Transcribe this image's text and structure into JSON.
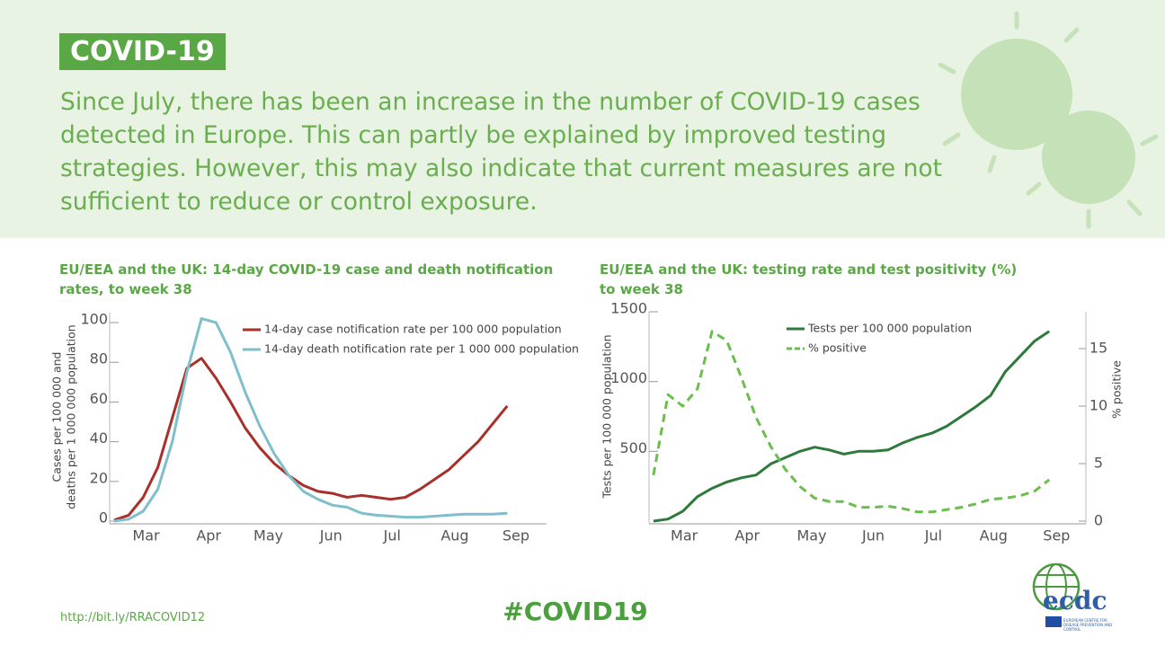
{
  "header": {
    "badge": "COVID-19",
    "text": "Since July, there has been an increase in the number of COVID-19 cases detected in Europe. This can partly be explained by improved testing strategies. However, this may also indicate that current measures are not sufficient to reduce or control exposure."
  },
  "chart_data": [
    {
      "type": "line",
      "title": "EU/EEA and the UK: 14-day COVID-19 case and death notification rates, to week 38",
      "ylabel": [
        "Cases per 100 000 and",
        "deaths per 1 000 000 population"
      ],
      "x": [
        9,
        10,
        11,
        12,
        13,
        14,
        15,
        16,
        17,
        18,
        19,
        20,
        21,
        22,
        23,
        24,
        25,
        26,
        27,
        28,
        29,
        30,
        31,
        32,
        33,
        34,
        35,
        36
      ],
      "xlim": [
        8.7,
        38.7
      ],
      "xticks": [
        {
          "value": 11.2,
          "label": "Mar"
        },
        {
          "value": 15.5,
          "label": "Apr"
        },
        {
          "value": 19.6,
          "label": "May"
        },
        {
          "value": 23.9,
          "label": "Jun"
        },
        {
          "value": 28.1,
          "label": "Jul"
        },
        {
          "value": 32.4,
          "label": "Aug"
        },
        {
          "value": 36.6,
          "label": "Sep"
        }
      ],
      "ylim": [
        0,
        105
      ],
      "yticks": [
        0,
        20,
        40,
        60,
        80,
        100
      ],
      "series": [
        {
          "name": "14-day case notification rate per 100 000 population",
          "color": "#a8302a",
          "values": [
            0.5,
            3,
            12,
            27,
            52,
            77,
            82,
            72,
            60,
            47,
            37,
            29,
            23,
            18,
            15,
            14,
            12,
            13,
            12,
            11,
            12,
            16,
            21,
            26,
            33,
            40,
            49,
            58
          ]
        },
        {
          "name": "14-day death notification rate per 1 000 000 population",
          "color": "#7fbfcb",
          "values": [
            0,
            1,
            5,
            16,
            40,
            75,
            102,
            100,
            85,
            65,
            48,
            34,
            23,
            15,
            11,
            8,
            7,
            4,
            3,
            2.5,
            2,
            2,
            2.5,
            3,
            3.5,
            3.5,
            3.5,
            4
          ]
        }
      ]
    },
    {
      "type": "line",
      "title": "EU/EEA and the UK: testing rate and test positivity (%) to week 38",
      "ylabel": [
        "Tests per 100 000 population"
      ],
      "y2label": "% positive",
      "x": [
        9,
        10,
        11,
        12,
        13,
        14,
        15,
        16,
        17,
        18,
        19,
        20,
        21,
        22,
        23,
        24,
        25,
        26,
        27,
        28,
        29,
        30,
        31,
        32,
        33,
        34,
        35,
        36
      ],
      "xlim": [
        8.7,
        38.5
      ],
      "xticks": [
        {
          "value": 11.1,
          "label": "Mar"
        },
        {
          "value": 15.4,
          "label": "Apr"
        },
        {
          "value": 19.8,
          "label": "May"
        },
        {
          "value": 24,
          "label": "Jun"
        },
        {
          "value": 28.1,
          "label": "Jul"
        },
        {
          "value": 32.2,
          "label": "Aug"
        },
        {
          "value": 36.5,
          "label": "Sep"
        }
      ],
      "ylim": [
        0,
        1500
      ],
      "yticks": [
        500,
        1000,
        1500
      ],
      "y2lim": [
        0,
        18.2
      ],
      "y2ticks": [
        0,
        5,
        10,
        15
      ],
      "series": [
        {
          "name": "Tests per 100 000 population",
          "color": "#2e7a3c",
          "linestyle": "solid",
          "values": [
            0,
            15,
            70,
            175,
            235,
            280,
            310,
            330,
            410,
            455,
            500,
            530,
            510,
            480,
            500,
            500,
            510,
            560,
            600,
            630,
            680,
            750,
            820,
            900,
            1070,
            1180,
            1290,
            1360
          ]
        },
        {
          "name": "% positive",
          "color": "#6cbd4f",
          "linestyle": "dashed",
          "axis": "y2",
          "values": [
            4,
            11,
            10,
            11.5,
            16.5,
            15.7,
            12.5,
            9,
            6.5,
            4.5,
            3,
            2,
            1.7,
            1.7,
            1.2,
            1.2,
            1.3,
            1.1,
            0.8,
            0.8,
            1,
            1.2,
            1.5,
            1.9,
            2,
            2.2,
            2.6,
            3.6
          ]
        }
      ]
    }
  ],
  "footer": {
    "url": "http://bit.ly/RRACOVID12",
    "hashtag": "#COVID19",
    "logo": "ecdc",
    "logo_subtitle": "EUROPEAN CENTRE FOR DISEASE PREVENTION AND CONTROL"
  }
}
